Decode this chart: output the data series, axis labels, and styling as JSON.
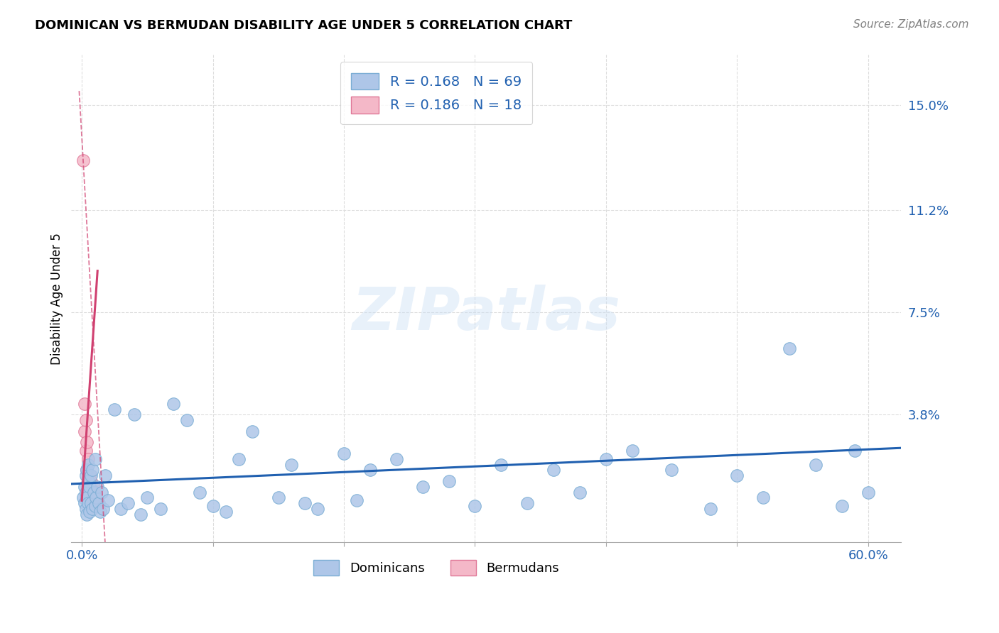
{
  "title": "DOMINICAN VS BERMUDAN DISABILITY AGE UNDER 5 CORRELATION CHART",
  "source": "Source: ZipAtlas.com",
  "ylabel": "Disability Age Under 5",
  "xlim": [
    -0.008,
    0.625
  ],
  "ylim": [
    -0.008,
    0.168
  ],
  "xtick_positions": [
    0.0,
    0.1,
    0.2,
    0.3,
    0.4,
    0.5,
    0.6
  ],
  "xtick_labels": [
    "0.0%",
    "",
    "",
    "",
    "",
    "",
    "60.0%"
  ],
  "ytick_vals_right": [
    0.038,
    0.075,
    0.112,
    0.15
  ],
  "ytick_labels_right": [
    "3.8%",
    "7.5%",
    "11.2%",
    "15.0%"
  ],
  "R_dom": 0.168,
  "N_dom": 69,
  "R_berm": 0.186,
  "N_berm": 18,
  "dom_color": "#aec6e8",
  "dom_edge": "#7aadd4",
  "berm_color": "#f4b8c8",
  "berm_edge": "#e07898",
  "trend_dom_color": "#2060b0",
  "trend_berm_color": "#d04070",
  "watermark_text": "ZIPatlas",
  "legend_label_dom": "Dominicans",
  "legend_label_berm": "Bermudans",
  "grid_color": "#dddddd",
  "title_fontsize": 13,
  "tick_fontsize": 13,
  "legend_fontsize": 14,
  "dom_x": [
    0.001,
    0.002,
    0.002,
    0.003,
    0.003,
    0.003,
    0.004,
    0.004,
    0.004,
    0.005,
    0.005,
    0.005,
    0.006,
    0.006,
    0.007,
    0.007,
    0.008,
    0.008,
    0.009,
    0.01,
    0.01,
    0.011,
    0.012,
    0.013,
    0.014,
    0.015,
    0.016,
    0.018,
    0.02,
    0.025,
    0.03,
    0.035,
    0.04,
    0.045,
    0.05,
    0.06,
    0.07,
    0.08,
    0.09,
    0.1,
    0.11,
    0.12,
    0.13,
    0.15,
    0.16,
    0.17,
    0.18,
    0.2,
    0.21,
    0.22,
    0.24,
    0.26,
    0.28,
    0.3,
    0.32,
    0.34,
    0.36,
    0.38,
    0.4,
    0.42,
    0.45,
    0.48,
    0.5,
    0.52,
    0.54,
    0.56,
    0.58,
    0.59,
    0.6
  ],
  "dom_y": [
    0.008,
    0.012,
    0.006,
    0.016,
    0.01,
    0.004,
    0.018,
    0.008,
    0.002,
    0.014,
    0.006,
    0.02,
    0.012,
    0.003,
    0.016,
    0.006,
    0.018,
    0.004,
    0.01,
    0.022,
    0.005,
    0.008,
    0.012,
    0.006,
    0.003,
    0.01,
    0.004,
    0.016,
    0.007,
    0.04,
    0.004,
    0.006,
    0.038,
    0.002,
    0.008,
    0.004,
    0.042,
    0.036,
    0.01,
    0.005,
    0.003,
    0.022,
    0.032,
    0.008,
    0.02,
    0.006,
    0.004,
    0.024,
    0.007,
    0.018,
    0.022,
    0.012,
    0.014,
    0.005,
    0.02,
    0.006,
    0.018,
    0.01,
    0.022,
    0.025,
    0.018,
    0.004,
    0.016,
    0.008,
    0.062,
    0.02,
    0.005,
    0.025,
    0.01
  ],
  "berm_x": [
    0.001,
    0.002,
    0.002,
    0.003,
    0.003,
    0.004,
    0.004,
    0.005,
    0.005,
    0.006,
    0.006,
    0.007,
    0.007,
    0.008,
    0.009,
    0.01,
    0.011,
    0.012
  ],
  "berm_y": [
    0.13,
    0.042,
    0.032,
    0.036,
    0.025,
    0.028,
    0.018,
    0.022,
    0.012,
    0.016,
    0.008,
    0.014,
    0.006,
    0.01,
    0.012,
    0.008,
    0.01,
    0.006
  ],
  "trend_dom_x0": -0.008,
  "trend_dom_x1": 0.625,
  "trend_dom_y0": 0.013,
  "trend_dom_y1": 0.026,
  "trend_berm_solid_x0": 0.0,
  "trend_berm_solid_x1": 0.012,
  "trend_berm_solid_y0": 0.007,
  "trend_berm_solid_y1": 0.09,
  "trend_berm_dash_x0": -0.002,
  "trend_berm_dash_x1": 0.018,
  "trend_berm_dash_y0": 0.155,
  "trend_berm_dash_y1": -0.01
}
